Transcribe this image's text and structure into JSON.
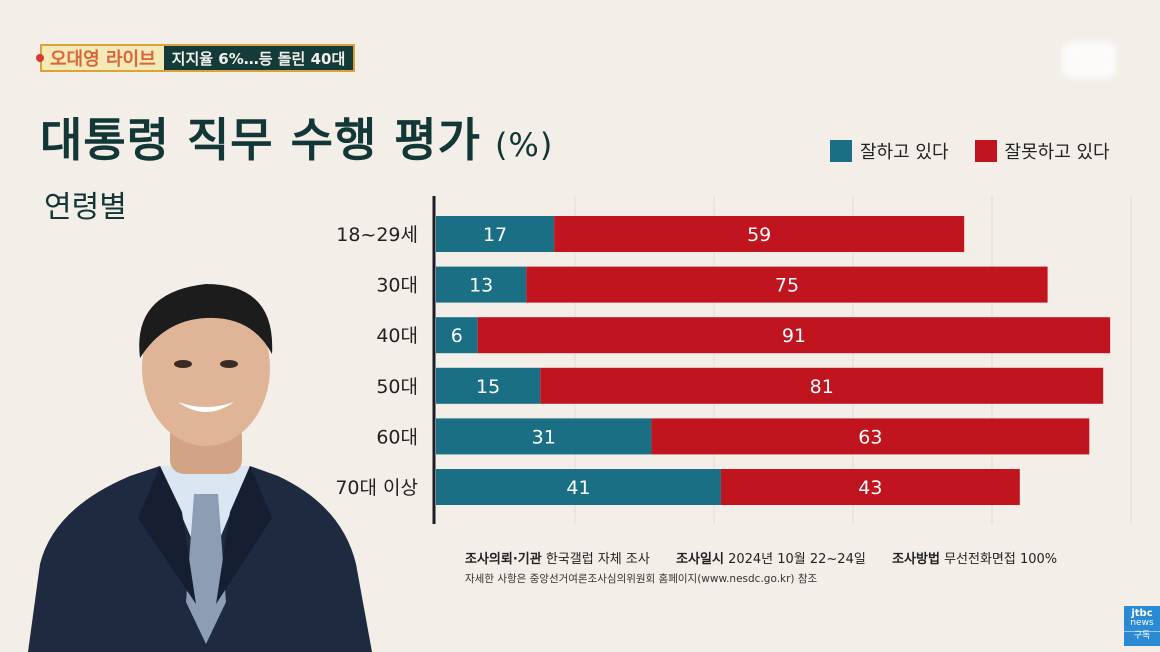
{
  "header": {
    "show_name": "오대영 라이브",
    "topic": "지지율 6%…등 돌린 40대"
  },
  "title": "대통령 직무 수행 평가",
  "title_unit": "(%)",
  "subtitle": "연령별",
  "colors": {
    "approve": "#1b6f85",
    "disapprove": "#c0141f",
    "background": "#f3eee8",
    "title": "#133636"
  },
  "legend": {
    "approve": "잘하고 있다",
    "disapprove": "잘못하고 있다"
  },
  "chart_data": {
    "type": "bar",
    "orientation": "horizontal",
    "stacked": true,
    "unit": "%",
    "categories": [
      "18~29세",
      "30대",
      "40대",
      "50대",
      "60대",
      "70대 이상"
    ],
    "series": [
      {
        "name": "잘하고 있다",
        "values": [
          17,
          13,
          6,
          15,
          31,
          41
        ]
      },
      {
        "name": "잘못하고 있다",
        "values": [
          59,
          75,
          91,
          81,
          63,
          43
        ]
      }
    ],
    "xlim": [
      0,
      100
    ],
    "grid": true,
    "legend_position": "top-right"
  },
  "footnote": {
    "client_label": "조사의뢰·기관",
    "client_value": "한국갤럽 자체 조사",
    "date_label": "조사일시",
    "date_value": "2024년 10월 22~24일",
    "method_label": "조사방법",
    "method_value": "무선전화면접 100%",
    "reference": "자세한 사항은 중앙선거여론조사심의위원회 홈페이지(www.nesdc.go.kr) 참조"
  },
  "broadcaster": {
    "line1": "jtbc",
    "line2": "news",
    "line3": "구독"
  },
  "images": {
    "person": "portrait-of-man-in-suit"
  }
}
